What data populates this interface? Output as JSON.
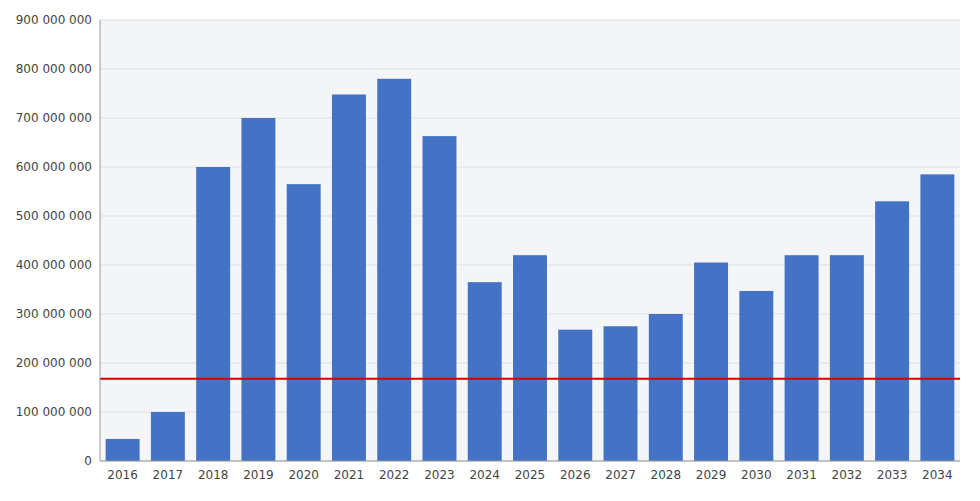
{
  "chart_data": {
    "type": "bar",
    "categories": [
      "2016",
      "2017",
      "2018",
      "2019",
      "2020",
      "2021",
      "2022",
      "2023",
      "2024",
      "2025",
      "2026",
      "2027",
      "2028",
      "2029",
      "2030",
      "2031",
      "2032",
      "2033",
      "2034"
    ],
    "values": [
      45000000,
      100000000,
      600000000,
      700000000,
      565000000,
      748000000,
      780000000,
      663000000,
      365000000,
      420000000,
      268000000,
      275000000,
      300000000,
      405000000,
      347000000,
      420000000,
      420000000,
      530000000,
      585000000
    ],
    "color": "#4472C4",
    "ylim": [
      0,
      900000000
    ],
    "yticks": [
      0,
      {
        "value": 100000000,
        "label": "100 000 000"
      },
      {
        "value": 200000000,
        "label": "200 000 000"
      },
      {
        "value": 300000000,
        "label": "300 000 000"
      },
      {
        "value": 400000000,
        "label": "400 000 000"
      },
      {
        "value": 500000000,
        "label": "500 000 000"
      },
      {
        "value": 600000000,
        "label": "600 000 000"
      },
      {
        "value": 700000000,
        "label": "700 000 000"
      },
      {
        "value": 800000000,
        "label": "800 000 000"
      },
      {
        "value": 900000000,
        "label": "900 000 000"
      }
    ],
    "grid": true,
    "reference_lines": [
      {
        "value": 168000000,
        "color": "#CC0000"
      }
    ]
  }
}
